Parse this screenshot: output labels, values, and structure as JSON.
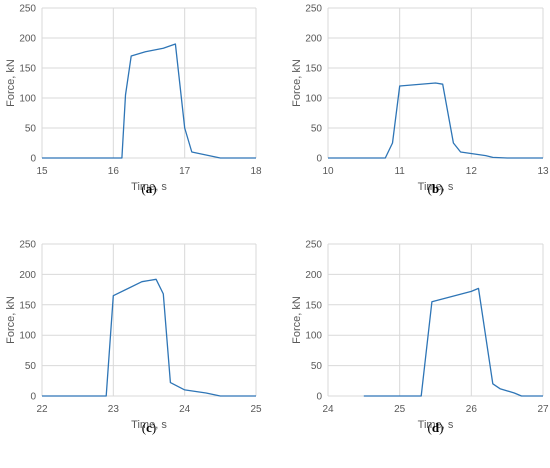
{
  "colors": {
    "series": "#2e75b6",
    "grid": "#d9d9d9",
    "text": "#595959"
  },
  "chart_data": [
    {
      "type": "line",
      "panel": "a",
      "caption_open": "(",
      "caption_letter": "a",
      "caption_close": ")",
      "xlabel": "Time, s",
      "ylabel": "Force, kN",
      "xlim": [
        15,
        18
      ],
      "ylim": [
        0,
        250
      ],
      "xticks": [
        15,
        16,
        17,
        18
      ],
      "yticks": [
        0,
        50,
        100,
        150,
        200,
        250
      ],
      "grid": true,
      "x": [
        15,
        16.0,
        16.12,
        16.17,
        16.25,
        16.45,
        16.7,
        16.87,
        17.0,
        17.1,
        17.5,
        18
      ],
      "y": [
        0,
        0,
        0,
        105,
        170,
        177,
        183,
        190,
        50,
        10,
        0,
        0
      ]
    },
    {
      "type": "line",
      "panel": "b",
      "caption_open": "(",
      "caption_letter": "b",
      "caption_close": ")",
      "xlabel": "Time, s",
      "ylabel": "Force, kN",
      "xlim": [
        10,
        13
      ],
      "ylim": [
        0,
        250
      ],
      "xticks": [
        10,
        11,
        12,
        13
      ],
      "yticks": [
        0,
        50,
        100,
        150,
        200,
        250
      ],
      "grid": true,
      "x": [
        10,
        10.8,
        10.9,
        11.0,
        11.5,
        11.6,
        11.75,
        11.85,
        12.2,
        12.3,
        12.5,
        13
      ],
      "y": [
        0,
        0,
        25,
        120,
        125,
        123,
        25,
        10,
        4,
        1,
        0,
        0
      ]
    },
    {
      "type": "line",
      "panel": "c",
      "caption_open": "(",
      "caption_letter": "c",
      "caption_close": ")",
      "xlabel": "Time, s",
      "ylabel": "Force, kN",
      "xlim": [
        22,
        25
      ],
      "ylim": [
        0,
        250
      ],
      "xticks": [
        22,
        23,
        24,
        25
      ],
      "yticks": [
        0,
        50,
        100,
        150,
        200,
        250
      ],
      "grid": true,
      "x": [
        22,
        22.9,
        23.0,
        23.4,
        23.5,
        23.6,
        23.7,
        23.8,
        24.0,
        24.3,
        24.5,
        25
      ],
      "y": [
        0,
        0,
        165,
        188,
        190,
        192,
        168,
        22,
        10,
        5,
        0,
        0
      ]
    },
    {
      "type": "line",
      "panel": "d",
      "caption_open": "(",
      "caption_letter": "d",
      "caption_close": ")",
      "xlabel": "Time, s",
      "ylabel": "Force, kN",
      "xlim": [
        24,
        27
      ],
      "ylim": [
        0,
        250
      ],
      "xticks": [
        24,
        25,
        26,
        27
      ],
      "yticks": [
        0,
        50,
        100,
        150,
        200,
        250
      ],
      "grid": true,
      "x": [
        24.5,
        25,
        25.3,
        25.45,
        26.0,
        26.1,
        26.3,
        26.4,
        26.6,
        26.7,
        27
      ],
      "y": [
        0,
        0,
        0,
        155,
        172,
        177,
        20,
        12,
        5,
        0,
        0
      ]
    }
  ]
}
